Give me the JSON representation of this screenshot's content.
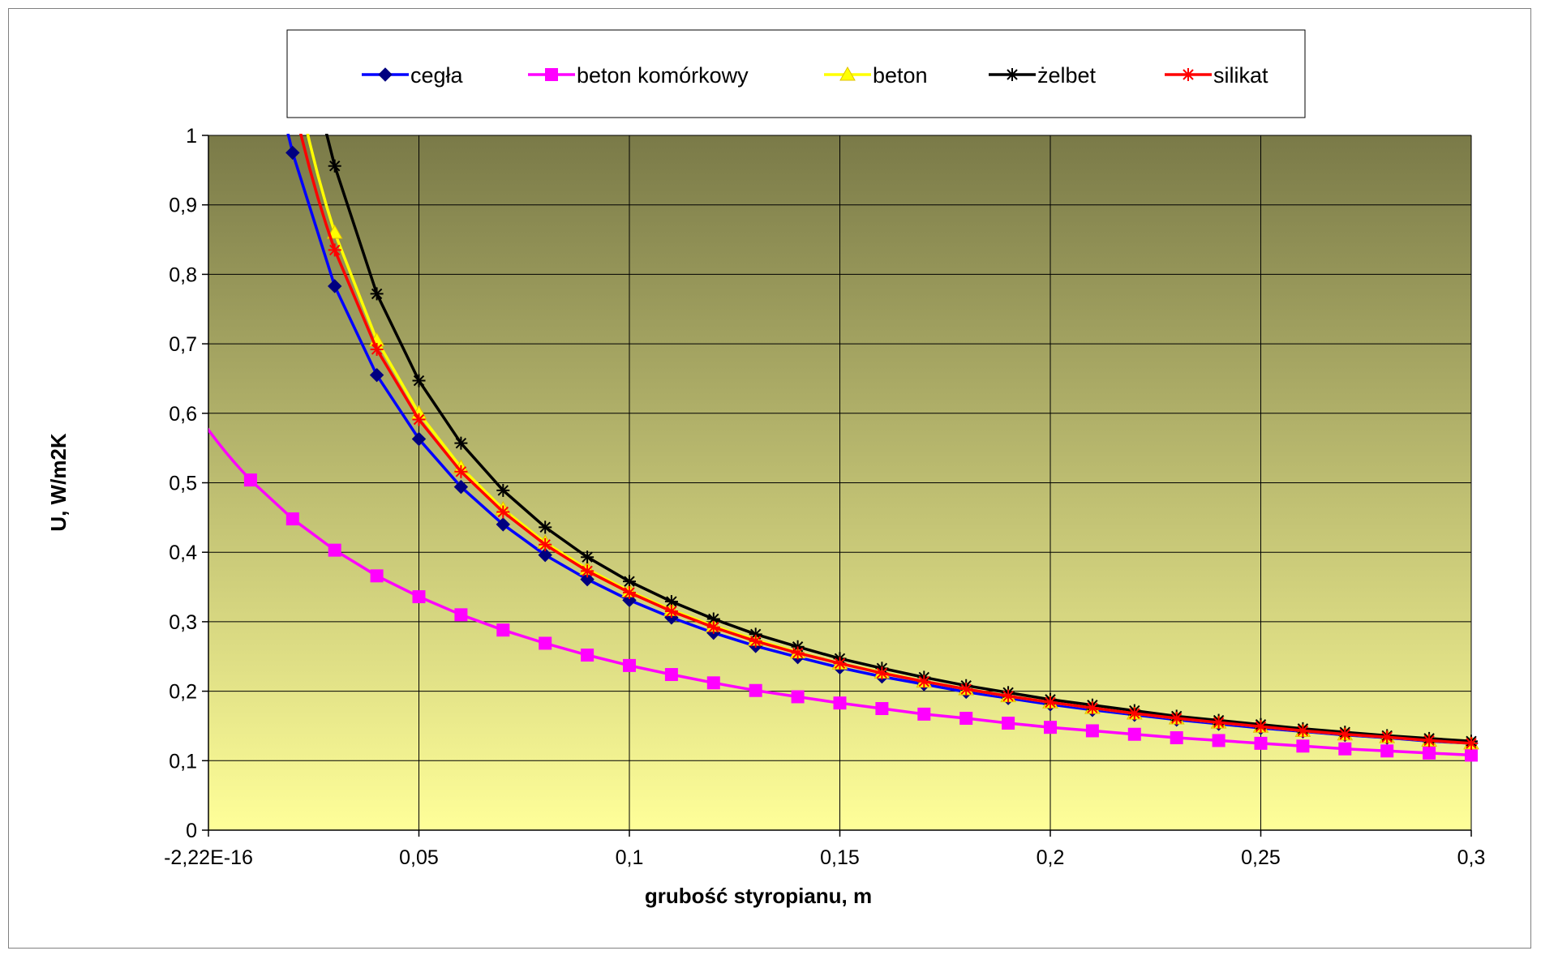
{
  "chart_data": {
    "type": "line",
    "title": "",
    "xlabel": "grubość styropianu, m",
    "ylabel": "U,  W/m2K",
    "xlim": [
      0,
      0.3
    ],
    "ylim": [
      0,
      1
    ],
    "x_ticks": [
      {
        "value": 0,
        "label": "-2,22E-16"
      },
      {
        "value": 0.05,
        "label": "0,05"
      },
      {
        "value": 0.1,
        "label": "0,1"
      },
      {
        "value": 0.15,
        "label": "0,15"
      },
      {
        "value": 0.2,
        "label": "0,2"
      },
      {
        "value": 0.25,
        "label": "0,25"
      },
      {
        "value": 0.3,
        "label": "0,3"
      }
    ],
    "y_ticks": [
      {
        "value": 0,
        "label": "0"
      },
      {
        "value": 0.1,
        "label": "0,1"
      },
      {
        "value": 0.2,
        "label": "0,2"
      },
      {
        "value": 0.3,
        "label": "0,3"
      },
      {
        "value": 0.4,
        "label": "0,4"
      },
      {
        "value": 0.5,
        "label": "0,5"
      },
      {
        "value": 0.6,
        "label": "0,6"
      },
      {
        "value": 0.7,
        "label": "0,7"
      },
      {
        "value": 0.8,
        "label": "0,8"
      },
      {
        "value": 0.9,
        "label": "0,9"
      },
      {
        "value": 1,
        "label": "1"
      }
    ],
    "grid": true,
    "legend_position": "top",
    "plot_background": {
      "top": "#7a7a48",
      "bottom": "#ffff99"
    },
    "x": [
      0.01,
      0.02,
      0.03,
      0.04,
      0.05,
      0.06,
      0.07,
      0.08,
      0.09,
      0.1,
      0.11,
      0.12,
      0.13,
      0.14,
      0.15,
      0.16,
      0.17,
      0.18,
      0.19,
      0.2,
      0.21,
      0.22,
      0.23,
      0.24,
      0.25,
      0.26,
      0.27,
      0.28,
      0.29,
      0.3
    ],
    "series": [
      {
        "name": "cegła",
        "color": "#0000ff",
        "marker": "diamond",
        "values": [
          null,
          0.975,
          0.783,
          0.655,
          0.563,
          0.494,
          0.44,
          0.396,
          0.361,
          0.331,
          0.306,
          0.284,
          0.265,
          0.249,
          0.234,
          0.221,
          0.21,
          0.199,
          0.19,
          0.181,
          0.173,
          0.166,
          0.159,
          0.153,
          0.147,
          0.142,
          0.137,
          0.133,
          0.128,
          0.125
        ]
      },
      {
        "name": "beton komórkowy",
        "color": "#ff00ff",
        "marker": "square",
        "values": [
          0.504,
          0.448,
          0.403,
          0.366,
          0.336,
          0.31,
          0.288,
          0.269,
          0.252,
          0.237,
          0.224,
          0.212,
          0.201,
          0.192,
          0.183,
          0.175,
          0.167,
          0.161,
          0.154,
          0.148,
          0.143,
          0.138,
          0.133,
          0.129,
          0.125,
          0.121,
          0.117,
          0.114,
          0.111,
          0.108
        ]
      },
      {
        "name": "beton",
        "color": "#ffff00",
        "marker": "triangle",
        "values": [
          null,
          null,
          0.86,
          0.705,
          0.6,
          0.522,
          0.462,
          0.414,
          0.376,
          0.344,
          0.317,
          0.294,
          0.274,
          0.256,
          0.24,
          0.227,
          0.214,
          0.203,
          0.193,
          0.184,
          0.176,
          0.168,
          0.161,
          0.155,
          0.149,
          0.143,
          0.138,
          0.134,
          0.129,
          0.125
        ]
      },
      {
        "name": "żelbet",
        "color": "#000000",
        "marker": "star",
        "values": [
          null,
          null,
          0.956,
          0.772,
          0.647,
          0.557,
          0.489,
          0.436,
          0.393,
          0.358,
          0.329,
          0.304,
          0.282,
          0.264,
          0.247,
          0.233,
          0.22,
          0.208,
          0.198,
          0.188,
          0.18,
          0.172,
          0.164,
          0.158,
          0.152,
          0.146,
          0.141,
          0.136,
          0.132,
          0.128
        ]
      },
      {
        "name": "silikat",
        "color": "#ff0000",
        "marker": "star",
        "values": [
          null,
          null,
          0.835,
          0.692,
          0.591,
          0.516,
          0.458,
          0.411,
          0.373,
          0.342,
          0.315,
          0.292,
          0.272,
          0.255,
          0.24,
          0.226,
          0.214,
          0.203,
          0.193,
          0.184,
          0.176,
          0.168,
          0.161,
          0.155,
          0.149,
          0.143,
          0.138,
          0.134,
          0.129,
          0.125
        ]
      }
    ]
  }
}
